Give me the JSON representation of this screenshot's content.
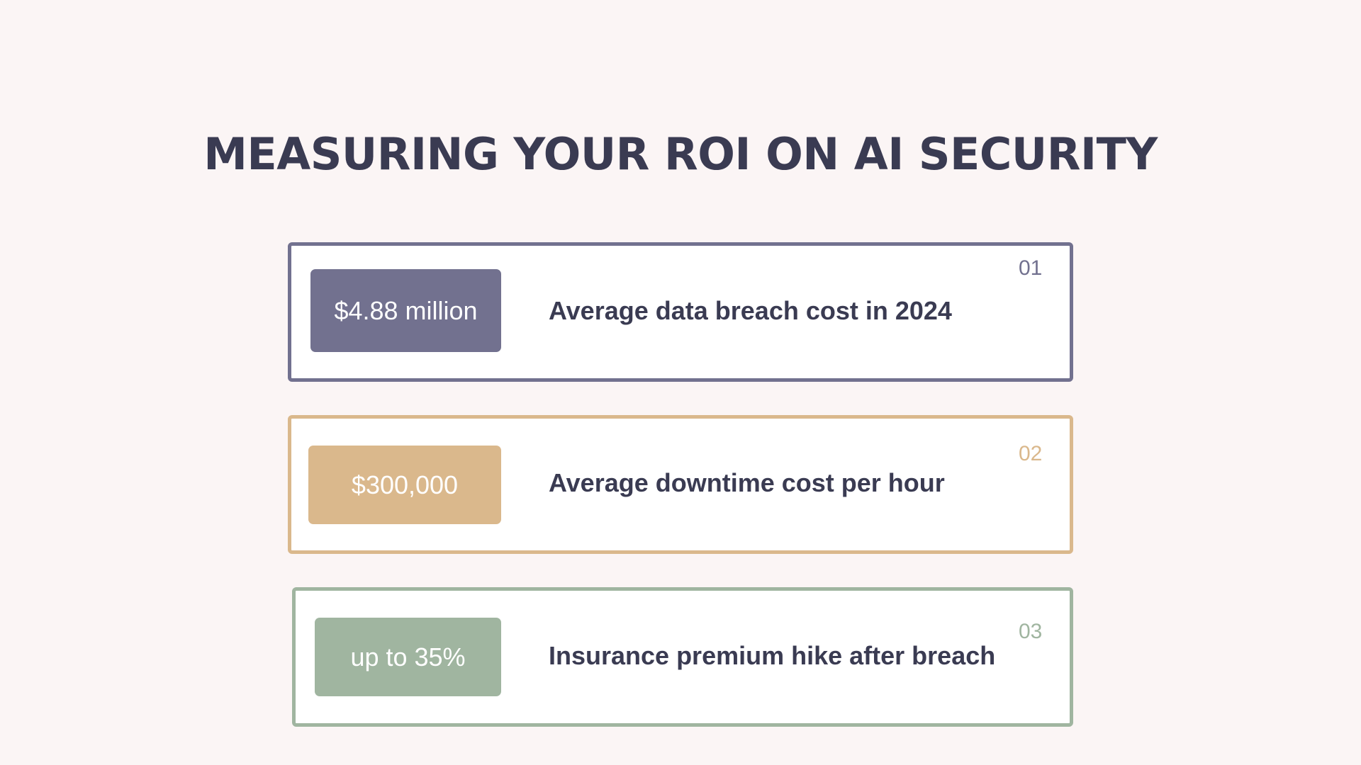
{
  "title": "MEASURING YOUR ROI ON AI SECURITY",
  "cards": [
    {
      "number": "01",
      "value": "$4.88 million",
      "description": "Average data breach cost in 2024",
      "color": "#72718f"
    },
    {
      "number": "02",
      "value": "$300,000",
      "description": "Average downtime cost per hour",
      "color": "#dab88c"
    },
    {
      "number": "03",
      "value": "up to 35%",
      "description": "Insurance premium hike after breach",
      "color": "#a0b5a0"
    }
  ]
}
